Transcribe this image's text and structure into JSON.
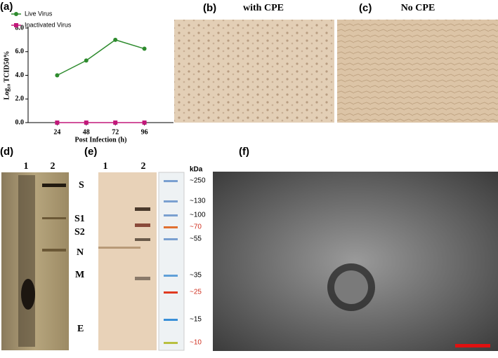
{
  "chart_data": {
    "type": "line",
    "panel_label": "(a)",
    "x_label": "Post Infection (h)",
    "y_label": "Log₁₀ TCID50%",
    "x": [
      24,
      48,
      72,
      96
    ],
    "series": [
      {
        "name": "Live Virus",
        "color": "#2e8b2e",
        "marker": "circle",
        "values": [
          4.0,
          5.25,
          7.0,
          6.25
        ]
      },
      {
        "name": "Inactivated Virus",
        "color": "#c2187a",
        "marker": "square",
        "values": [
          0,
          0,
          0,
          0
        ]
      }
    ],
    "xlim": [
      0,
      120
    ],
    "xticks": [
      24,
      48,
      72,
      96
    ],
    "ylim": [
      0,
      8
    ],
    "yticks": [
      {
        "value": 0,
        "label": "0.0"
      },
      {
        "value": 2,
        "label": "2.0"
      },
      {
        "value": 4,
        "label": "4.0"
      },
      {
        "value": 6,
        "label": "6.0"
      },
      {
        "value": 8,
        "label": "8.0"
      }
    ],
    "legend": "top-left"
  },
  "panels": {
    "b": {
      "label": "(b)",
      "title": "with CPE"
    },
    "c": {
      "label": "(c)",
      "title": "No CPE"
    },
    "d": {
      "label": "(d)",
      "lanes": [
        "1",
        "2"
      ],
      "bands": [
        "S",
        "S1",
        "S2",
        "N",
        "M",
        "E"
      ]
    },
    "e": {
      "label": "(e)",
      "lanes": [
        "1",
        "2"
      ],
      "ladder_unit": "kDa",
      "ladder": [
        "~250",
        "~130",
        "~100",
        "~70",
        "~55",
        "~35",
        "~25",
        "~15",
        "~10"
      ]
    },
    "f": {
      "label": "(f)"
    }
  }
}
